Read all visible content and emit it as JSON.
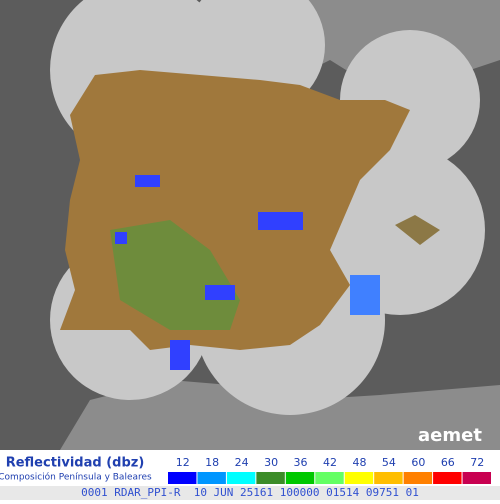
{
  "legend": {
    "title": "Reflectividad (dbz)",
    "subtitle": "Composición Península y Baleares",
    "items": [
      {
        "value": 12,
        "color": "#0000ff"
      },
      {
        "value": 18,
        "color": "#0096ff"
      },
      {
        "value": 24,
        "color": "#00ffff"
      },
      {
        "value": 30,
        "color": "#3c8c28"
      },
      {
        "value": 36,
        "color": "#00c800"
      },
      {
        "value": 42,
        "color": "#64ff64"
      },
      {
        "value": 48,
        "color": "#ffff00"
      },
      {
        "value": 54,
        "color": "#ffbe00"
      },
      {
        "value": 60,
        "color": "#ff8000"
      },
      {
        "value": 66,
        "color": "#ff0000"
      },
      {
        "value": 72,
        "color": "#c80050"
      }
    ]
  },
  "logo": "aemet",
  "footer": "0001 RDAR_PPI-R  10 JUN 25161 100000 01514 09751 01"
}
